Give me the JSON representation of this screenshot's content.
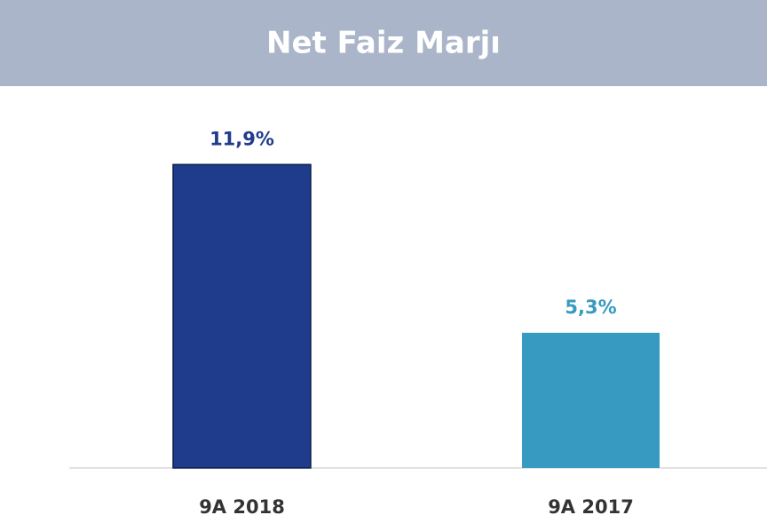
{
  "chart_data": {
    "type": "bar",
    "title": "Net Faiz Marjı",
    "categories": [
      "9A 2018",
      "9A 2017"
    ],
    "values": [
      11.9,
      5.3
    ],
    "value_labels": [
      "11,9%",
      "5,3%"
    ],
    "colors": [
      "#1f3c8c",
      "#379ac0"
    ],
    "ylim": [
      0,
      14
    ]
  }
}
